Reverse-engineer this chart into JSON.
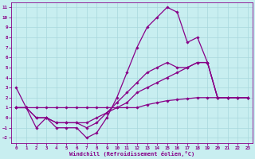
{
  "xlabel": "Windchill (Refroidissement éolien,°C)",
  "xlim": [
    -0.5,
    23.5
  ],
  "ylim": [
    -2.5,
    11.5
  ],
  "xticks": [
    0,
    1,
    2,
    3,
    4,
    5,
    6,
    7,
    8,
    9,
    10,
    11,
    12,
    13,
    14,
    15,
    16,
    17,
    18,
    19,
    20,
    21,
    22,
    23
  ],
  "yticks": [
    -2,
    -1,
    0,
    1,
    2,
    3,
    4,
    5,
    6,
    7,
    8,
    9,
    10,
    11
  ],
  "bg_color": "#c8eef0",
  "grid_color": "#a8d8dc",
  "line_color": "#880088",
  "line_width": 0.9,
  "marker": "D",
  "marker_size": 1.8,
  "lines": [
    {
      "x": [
        0,
        1,
        2,
        3,
        4,
        5,
        6,
        7,
        8,
        9,
        10,
        11,
        12,
        13,
        14,
        15,
        16,
        17,
        18,
        19,
        20,
        21,
        22,
        23
      ],
      "y": [
        3,
        1,
        -1,
        0,
        -1,
        -1,
        -1,
        -2,
        -1.5,
        0,
        2,
        4.5,
        7,
        9,
        10,
        11,
        10.5,
        7.5,
        8,
        5.5,
        2,
        2,
        2,
        2
      ]
    },
    {
      "x": [
        0,
        1,
        2,
        3,
        4,
        5,
        6,
        7,
        8,
        9,
        10,
        11,
        12,
        13,
        14,
        15,
        16,
        17,
        18,
        19,
        20,
        21,
        22,
        23
      ],
      "y": [
        1,
        1,
        1,
        1,
        1,
        1,
        1,
        1,
        1,
        1,
        1,
        1,
        1,
        1.3,
        1.5,
        1.7,
        1.8,
        1.9,
        2,
        2,
        2,
        2,
        2,
        2
      ]
    },
    {
      "x": [
        0,
        1,
        2,
        3,
        4,
        5,
        6,
        7,
        8,
        9,
        10,
        11,
        12,
        13,
        14,
        15,
        16,
        17,
        18,
        19,
        20,
        21,
        22,
        23
      ],
      "y": [
        1,
        1,
        0,
        0,
        -0.5,
        -0.5,
        -0.5,
        -1,
        -0.5,
        0.5,
        1.5,
        2.5,
        3.5,
        4.5,
        5,
        5.5,
        5,
        5,
        5.5,
        5.5,
        2,
        2,
        2,
        2
      ]
    },
    {
      "x": [
        0,
        1,
        2,
        3,
        4,
        5,
        6,
        7,
        8,
        9,
        10,
        11,
        12,
        13,
        14,
        15,
        16,
        17,
        18,
        19,
        20,
        21,
        22,
        23
      ],
      "y": [
        1,
        1,
        0,
        0,
        -0.5,
        -0.5,
        -0.5,
        -0.5,
        0,
        0.5,
        1,
        1.5,
        2.5,
        3,
        3.5,
        4,
        4.5,
        5,
        5.5,
        5.5,
        2,
        2,
        2,
        2
      ]
    }
  ]
}
